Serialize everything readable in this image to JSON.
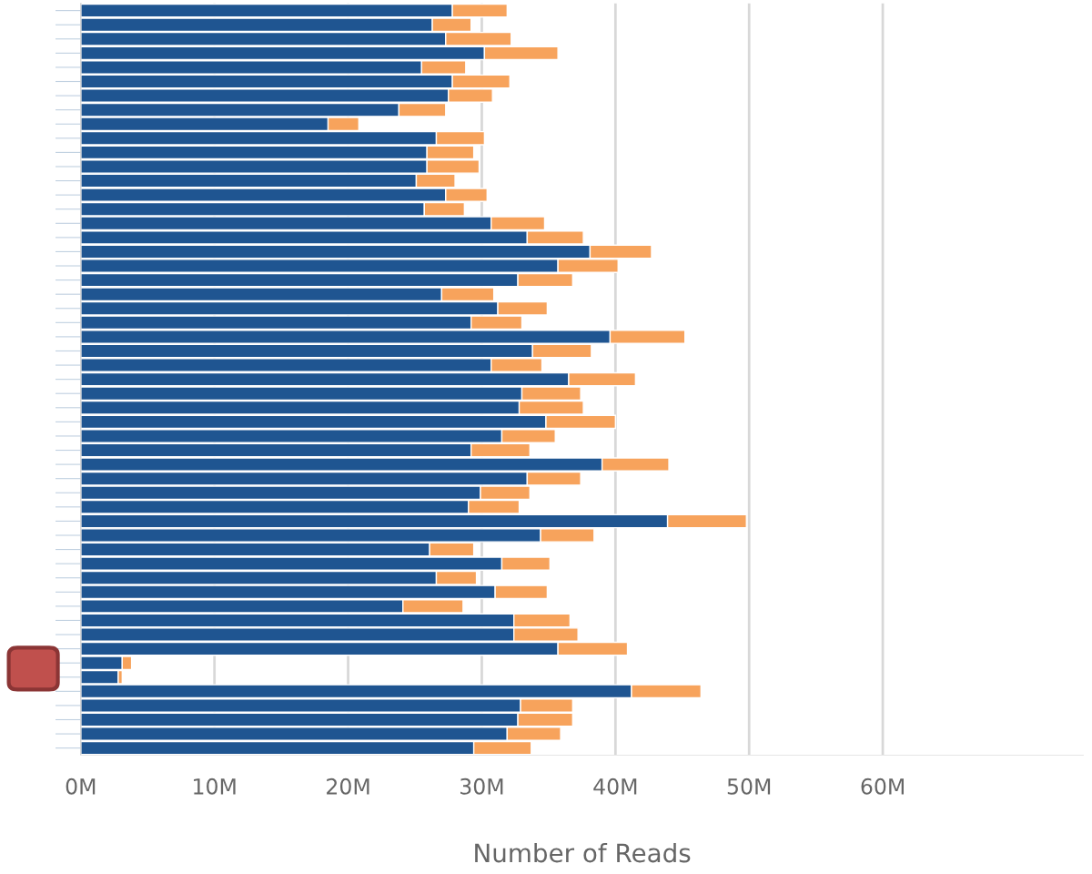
{
  "chart_data": {
    "type": "bar",
    "orientation": "horizontal",
    "stacked": true,
    "categories": [
      null,
      null,
      null,
      null,
      null,
      null,
      null,
      null,
      null,
      null,
      null,
      null,
      null,
      null,
      null,
      null,
      null,
      null,
      null,
      null,
      null,
      null,
      null,
      null,
      null,
      null,
      null,
      null,
      null,
      null,
      null,
      null,
      null,
      null,
      null,
      null,
      null,
      null,
      null,
      null,
      null,
      null,
      null,
      null,
      null,
      null,
      null,
      null,
      null,
      null,
      null,
      null,
      null
    ],
    "series": [
      {
        "color": "#1f5591",
        "values": [
          27.8,
          26.3,
          27.3,
          30.2,
          25.5,
          27.8,
          27.5,
          23.8,
          18.5,
          26.6,
          25.9,
          25.9,
          25.1,
          27.3,
          25.7,
          30.7,
          33.4,
          38.1,
          35.7,
          32.7,
          27.0,
          31.2,
          29.2,
          39.6,
          33.8,
          30.7,
          36.5,
          33.0,
          32.8,
          34.8,
          31.5,
          29.2,
          39.0,
          33.4,
          29.9,
          29.0,
          43.9,
          34.4,
          26.1,
          31.5,
          26.6,
          31.0,
          24.1,
          32.4,
          32.4,
          35.7,
          3.1,
          2.8,
          41.2,
          32.9,
          32.7,
          31.9,
          29.4
        ]
      },
      {
        "color": "#f7a35c",
        "values": [
          4.1,
          2.9,
          4.9,
          5.5,
          3.3,
          4.3,
          3.3,
          3.5,
          2.3,
          3.6,
          3.5,
          3.9,
          2.9,
          3.1,
          3.0,
          4.0,
          4.2,
          4.6,
          4.5,
          4.1,
          3.9,
          3.7,
          3.8,
          5.6,
          4.4,
          3.8,
          5.0,
          4.4,
          4.8,
          5.2,
          4.0,
          4.4,
          5.0,
          4.0,
          3.7,
          3.8,
          5.9,
          4.0,
          3.3,
          3.6,
          3.0,
          3.9,
          4.5,
          4.2,
          4.8,
          5.2,
          0.7,
          0.3,
          5.2,
          3.9,
          4.1,
          4.0,
          4.3
        ]
      }
    ],
    "xlim": [
      0,
      75
    ],
    "xticks": [
      {
        "value": 0,
        "label": "0M"
      },
      {
        "value": 10,
        "label": "10M"
      },
      {
        "value": 20,
        "label": "20M"
      },
      {
        "value": 30,
        "label": "30M"
      },
      {
        "value": 40,
        "label": "40M"
      },
      {
        "value": 50,
        "label": "50M"
      },
      {
        "value": 60,
        "label": "60M"
      }
    ],
    "xlabel": "Number of Reads",
    "grid": "x",
    "tick_labels": "x",
    "legend": false
  }
}
